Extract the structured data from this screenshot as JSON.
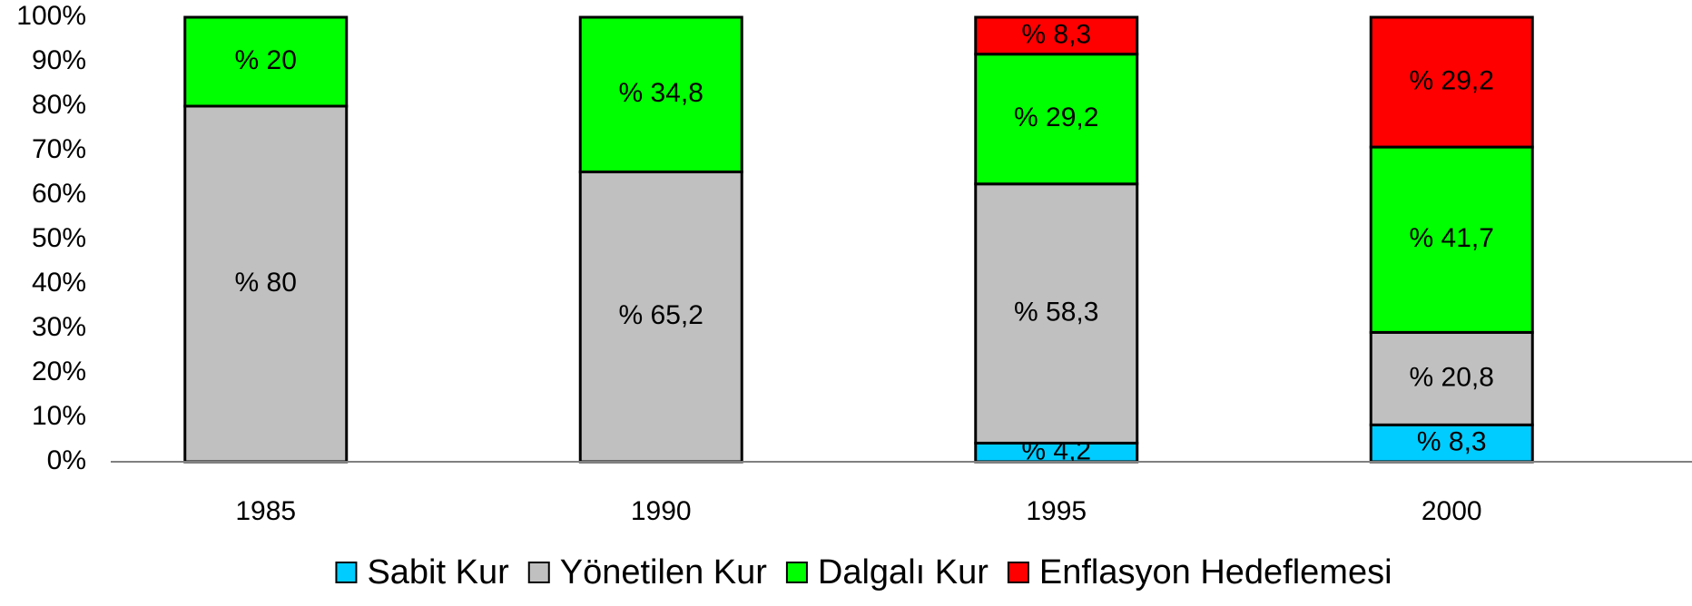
{
  "chart_data": {
    "type": "stacked_bar",
    "categories": [
      "1985",
      "1990",
      "1995",
      "2000"
    ],
    "series": [
      {
        "name": "Sabit Kur",
        "color": "#00ccff",
        "values": [
          0,
          0,
          4.2,
          8.3
        ],
        "value_labels": [
          null,
          null,
          "% 4,2",
          "% 8,3"
        ]
      },
      {
        "name": "Yönetilen Kur",
        "color": "#c0c0c0",
        "values": [
          80,
          65.2,
          58.3,
          20.8
        ],
        "value_labels": [
          "% 80",
          "% 65,2",
          "% 58,3",
          "% 20,8"
        ]
      },
      {
        "name": "Dalgalı Kur",
        "color": "#00ff00",
        "values": [
          20,
          34.8,
          29.2,
          41.7
        ],
        "value_labels": [
          "% 20",
          "% 34,8",
          "% 29,2",
          "% 41,7"
        ]
      },
      {
        "name": "Enflasyon Hedeflemesi",
        "color": "#ff0000",
        "values": [
          0,
          0,
          8.3,
          29.2
        ],
        "value_labels": [
          null,
          null,
          "% 8,3",
          "% 29,2"
        ]
      }
    ],
    "ylim": [
      0,
      100
    ],
    "yticks": [
      {
        "value": 0,
        "label": "0%"
      },
      {
        "value": 10,
        "label": "10%"
      },
      {
        "value": 20,
        "label": "20%"
      },
      {
        "value": 30,
        "label": "30%"
      },
      {
        "value": 40,
        "label": "40%"
      },
      {
        "value": 50,
        "label": "50%"
      },
      {
        "value": 60,
        "label": "60%"
      },
      {
        "value": 70,
        "label": "70%"
      },
      {
        "value": 80,
        "label": "80%"
      },
      {
        "value": 90,
        "label": "90%"
      },
      {
        "value": 100,
        "label": "100%"
      }
    ],
    "legend": "bottom"
  }
}
